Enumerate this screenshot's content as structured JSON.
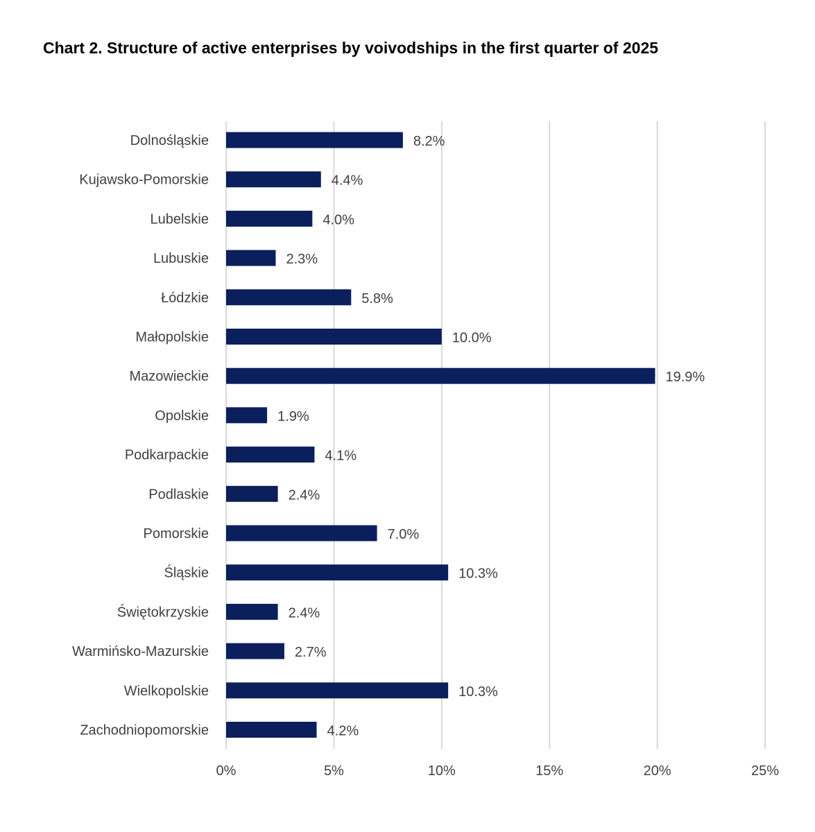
{
  "chart_data": {
    "type": "bar",
    "orientation": "horizontal",
    "title": "Chart 2. Structure of active enterprises by voivodships in the first quarter of 2025",
    "categories": [
      "Dolnośląskie",
      "Kujawsko-Pomorskie",
      "Lubelskie",
      "Lubuskie",
      "Łódzkie",
      "Małopolskie",
      "Mazowieckie",
      "Opolskie",
      "Podkarpackie",
      "Podlaskie",
      "Pomorskie",
      "Śląskie",
      "Świętokrzyskie",
      "Warmińsko-Mazurskie",
      "Wielkopolskie",
      "Zachodniopomorskie"
    ],
    "values": [
      8.2,
      4.4,
      4.0,
      2.3,
      5.8,
      10.0,
      19.9,
      1.9,
      4.1,
      2.4,
      7.0,
      10.3,
      2.4,
      2.7,
      10.3,
      4.2
    ],
    "data_labels": [
      "8.2%",
      "4.4%",
      "4.0%",
      "2.3%",
      "5.8%",
      "10.0%",
      "19.9%",
      "1.9%",
      "4.1%",
      "2.4%",
      "7.0%",
      "10.3%",
      "2.4%",
      "2.7%",
      "10.3%",
      "4.2%"
    ],
    "xlim": [
      0,
      25
    ],
    "x_ticks": [
      0,
      5,
      10,
      15,
      20,
      25
    ],
    "x_tick_labels": [
      "0%",
      "5%",
      "10%",
      "15%",
      "20%",
      "25%"
    ],
    "xlabel": "",
    "ylabel": "",
    "grid": "vertical",
    "legend": "none",
    "colors": {
      "bar": "#0b1f5c",
      "grid": "#d9d9d9",
      "text": "#404040"
    }
  }
}
